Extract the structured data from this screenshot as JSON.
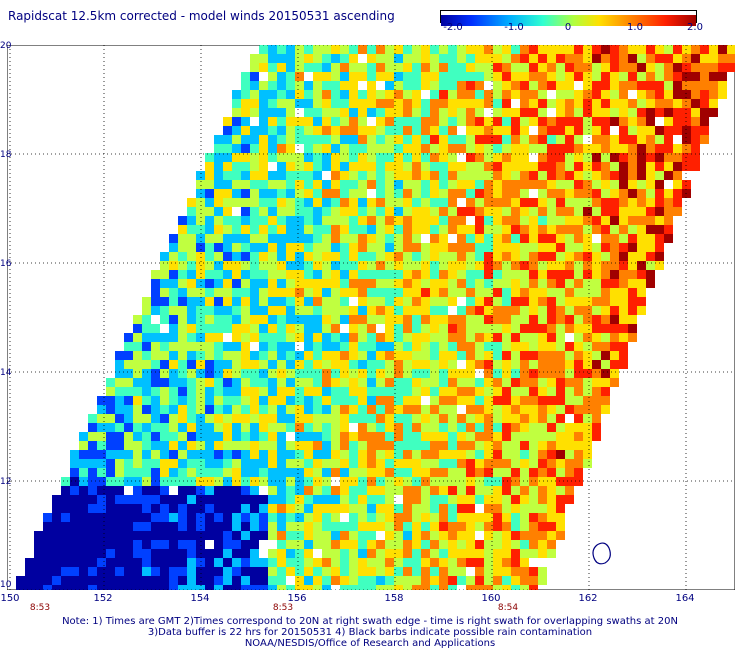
{
  "title": "Rapidscat 12.5km corrected - model winds 20150531 ascending",
  "colorbar": {
    "labels": [
      "-2.0",
      "-1.0",
      "0",
      "1.0",
      "2.0"
    ],
    "values": [
      -2.0,
      -1.0,
      0,
      1.0,
      2.0
    ],
    "colors": [
      "#0000a0",
      "#0040ff",
      "#00c0ff",
      "#40ffc0",
      "#c0ff40",
      "#ffe000",
      "#ff8000",
      "#ff2000",
      "#a00000"
    ]
  },
  "axes": {
    "lat_labels": [
      "20",
      "18",
      "16",
      "14",
      "12",
      "10"
    ],
    "lat_values": [
      20,
      18,
      16,
      14,
      12,
      10
    ],
    "lon_labels": [
      "150",
      "152",
      "154",
      "156",
      "158",
      "160",
      "162",
      "164"
    ],
    "lon_values": [
      150,
      152,
      154,
      156,
      158,
      160,
      162,
      164
    ],
    "lon_range": [
      150,
      165
    ],
    "lat_range": [
      10,
      20
    ]
  },
  "time_labels": [
    {
      "text": "8:53",
      "lon": 150.6
    },
    {
      "text": "8:53",
      "lon": 155.6
    },
    {
      "text": "8:54",
      "lon": 160.6
    }
  ],
  "notes": [
    "Note: 1) Times are GMT 2)Times correspond to 20N at right swath edge - time is right swath for overlapping swaths at 20N",
    "3)Data buffer is 22 hrs for 20150531 4) Black barbs indicate possible rain contamination",
    "NOAA/NESDIS/Office of Research and Applications"
  ],
  "colors": {
    "text": "#000080",
    "time": "#8b0000"
  }
}
